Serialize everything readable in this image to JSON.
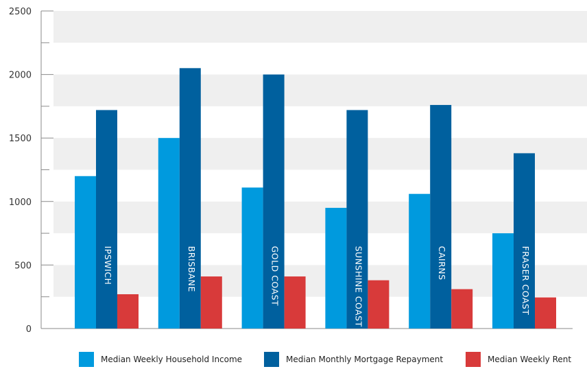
{
  "chart_data": {
    "type": "bar",
    "title": "",
    "xlabel": "",
    "ylabel": "",
    "ylim": [
      0,
      2500
    ],
    "yticks": [
      0,
      500,
      1000,
      1500,
      2000,
      2500
    ],
    "grid": "horizontal alternating bands",
    "legend_position": "bottom",
    "categories": [
      "IPSWICH",
      "BRISBANE",
      "GOLD COAST",
      "SUNSHINE COAST",
      "CAIRNS",
      "FRASER COAST"
    ],
    "series": [
      {
        "name": "Median Weekly Household Income",
        "color": "#009ADE",
        "values": [
          1200,
          1500,
          1110,
          950,
          1060,
          750
        ]
      },
      {
        "name": "Median Monthly Mortgage Repayment",
        "color": "#00609E",
        "values": [
          1720,
          2050,
          2000,
          1720,
          1760,
          1380
        ]
      },
      {
        "name": "Median Weekly Rent",
        "color": "#D83A3A",
        "values": [
          270,
          410,
          410,
          380,
          310,
          245
        ]
      }
    ]
  }
}
